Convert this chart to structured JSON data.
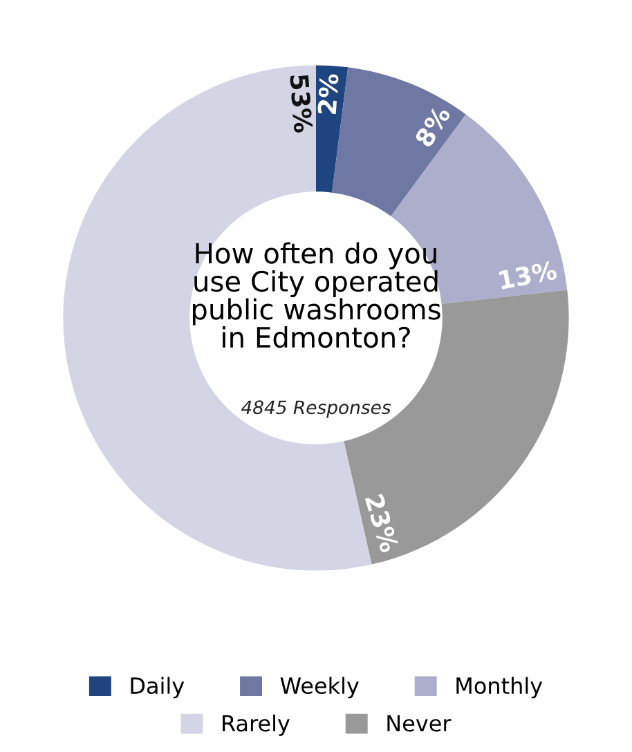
{
  "chart_data": {
    "type": "donut",
    "title": "How often do you\nuse City operated\npublic washrooms\nin Edmonton?",
    "annotations": [
      "4845 Responses"
    ],
    "categories": [
      "Daily",
      "Weekly",
      "Monthly",
      "Never",
      "Rarely"
    ],
    "values": [
      2,
      8,
      13,
      23,
      53
    ],
    "colors": [
      "#1f4580",
      "#6f77a3",
      "#adaecb",
      "#999999",
      "#d3d5e5"
    ],
    "value_labels": [
      "2%",
      "8%",
      "13%",
      "23%",
      "53%"
    ],
    "legend": "bottom"
  }
}
